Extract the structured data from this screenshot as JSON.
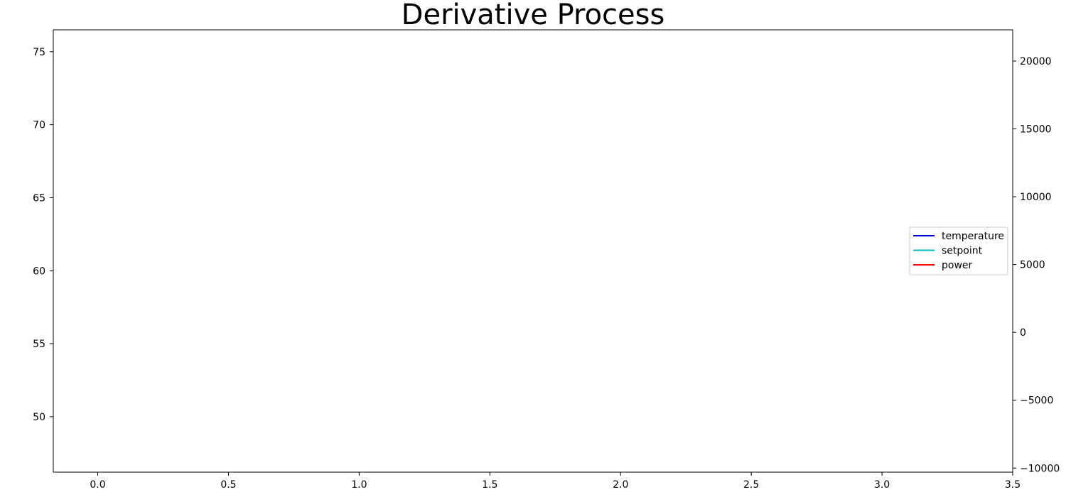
{
  "chart_data": {
    "type": "line",
    "title": "Derivative Process",
    "xlabel": "",
    "ylabel": "",
    "y2label": "",
    "xlim": [
      -0.17,
      3.5
    ],
    "ylim": [
      46.2,
      76.5
    ],
    "y2lim": [
      -10300,
      22300
    ],
    "x_ticks": [
      0.0,
      0.5,
      1.0,
      1.5,
      2.0,
      2.5,
      3.0,
      3.5
    ],
    "x_tick_labels": [
      "0.0",
      "0.5",
      "1.0",
      "1.5",
      "2.0",
      "2.5",
      "3.0",
      "3.5"
    ],
    "y_ticks": [
      50,
      55,
      60,
      65,
      70,
      75
    ],
    "y_tick_labels": [
      "50",
      "55",
      "60",
      "65",
      "70",
      "75"
    ],
    "y2_ticks": [
      -10000,
      -5000,
      0,
      5000,
      10000,
      15000,
      20000
    ],
    "y2_tick_labels": [
      "−10000",
      "−5000",
      "0",
      "5000",
      "10000",
      "15000",
      "20000"
    ],
    "grid": false,
    "legend_position": "center-right",
    "series": [
      {
        "name": "temperature",
        "color": "#0000cc",
        "axis": "left",
        "x": [],
        "y": []
      },
      {
        "name": "setpoint",
        "color": "#00bfbf",
        "axis": "left",
        "x": [],
        "y": []
      },
      {
        "name": "power",
        "color": "#ff0000",
        "axis": "right",
        "x": [],
        "y": []
      }
    ]
  }
}
